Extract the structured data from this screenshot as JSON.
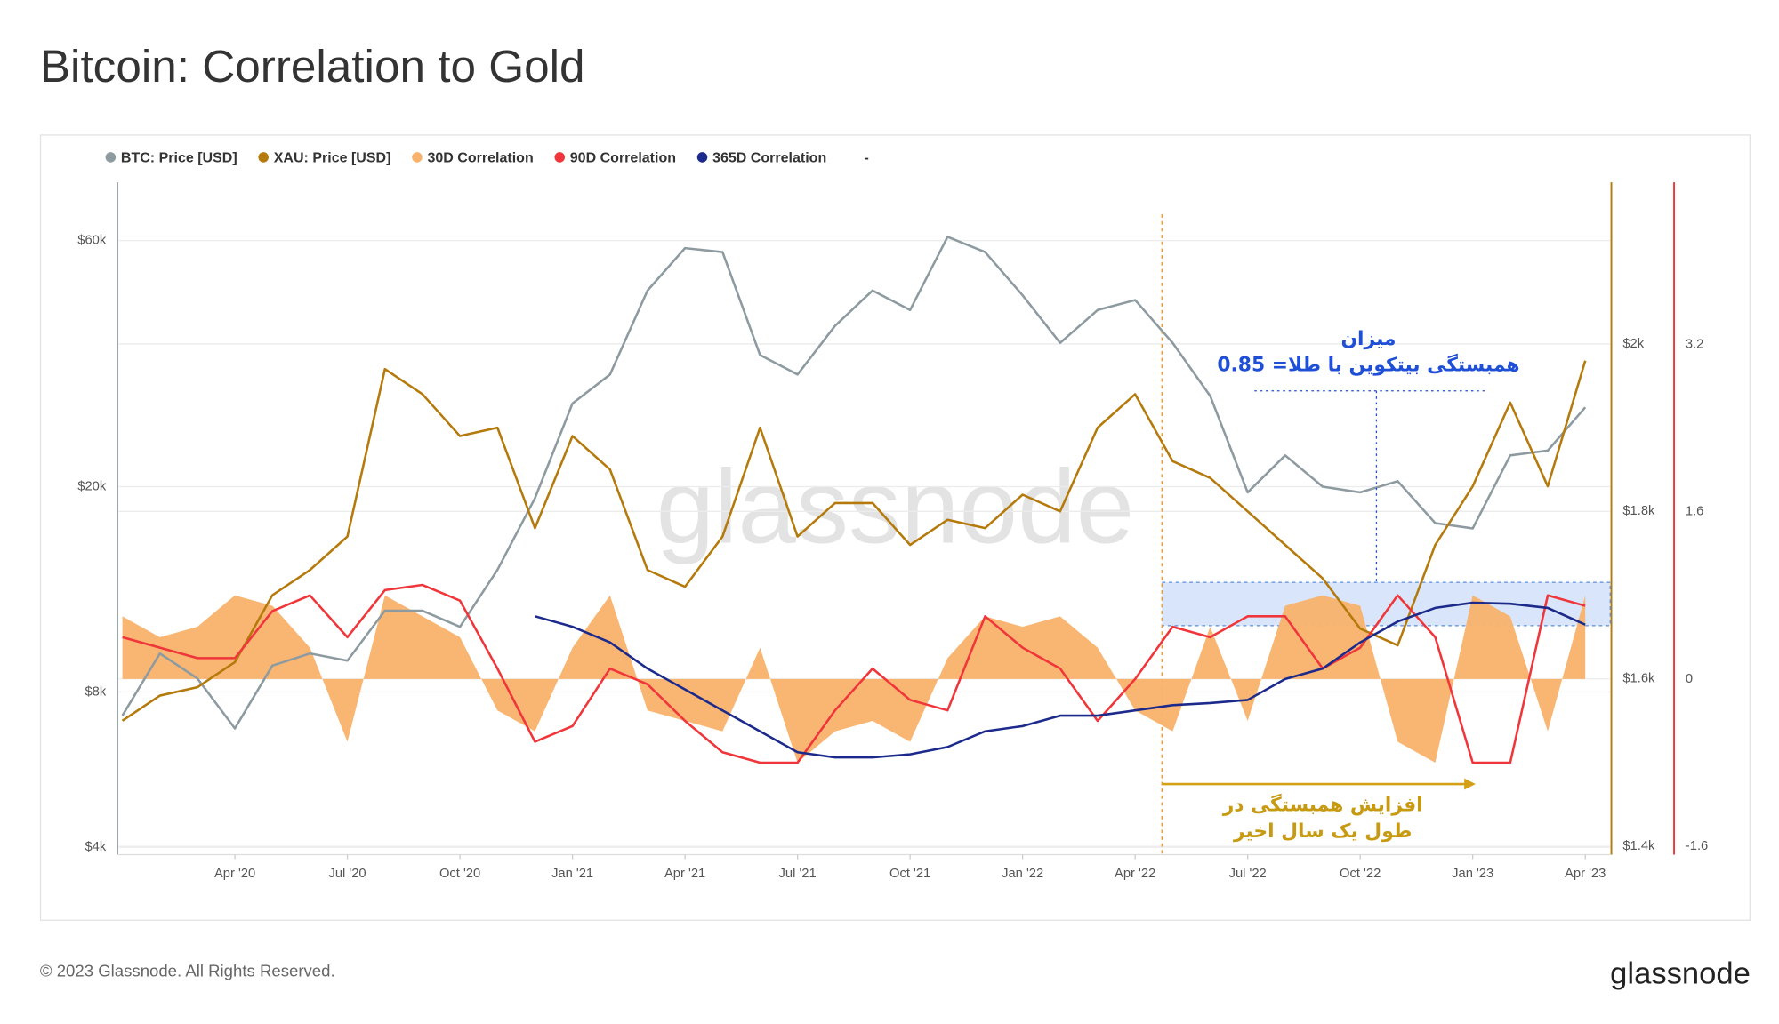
{
  "chart_data": {
    "type": "line",
    "title": "Bitcoin: Correlation to Gold",
    "footer": "© 2023 Glassnode. All Rights Reserved.",
    "logo": "glassnode",
    "watermark": "glassnode",
    "legend_note": "-",
    "annotations": [
      "میزان",
      "همبستگی بیتکوین با طلا= 0.85",
      "افزایش همبستگی در",
      "طول یک سال اخیر"
    ],
    "x": [
      "2020-01",
      "2020-02",
      "2020-03",
      "2020-04",
      "2020-05",
      "2020-06",
      "2020-07",
      "2020-08",
      "2020-09",
      "2020-10",
      "2020-11",
      "2020-12",
      "2021-01",
      "2021-02",
      "2021-03",
      "2021-04",
      "2021-05",
      "2021-06",
      "2021-07",
      "2021-08",
      "2021-09",
      "2021-10",
      "2021-11",
      "2021-12",
      "2022-01",
      "2022-02",
      "2022-03",
      "2022-04",
      "2022-05",
      "2022-06",
      "2022-07",
      "2022-08",
      "2022-09",
      "2022-10",
      "2022-11",
      "2022-12",
      "2023-01",
      "2023-02",
      "2023-03",
      "2023-04"
    ],
    "xlim": [
      "2020-01",
      "2023-05"
    ],
    "xticks": [
      {
        "value": "2020-04",
        "label": "Apr '20"
      },
      {
        "value": "2020-07",
        "label": "Jul '20"
      },
      {
        "value": "2020-10",
        "label": "Oct '20"
      },
      {
        "value": "2021-01",
        "label": "Jan '21"
      },
      {
        "value": "2021-04",
        "label": "Apr '21"
      },
      {
        "value": "2021-07",
        "label": "Jul '21"
      },
      {
        "value": "2021-10",
        "label": "Oct '21"
      },
      {
        "value": "2022-01",
        "label": "Jan '22"
      },
      {
        "value": "2022-04",
        "label": "Apr '22"
      },
      {
        "value": "2022-07",
        "label": "Jul '22"
      },
      {
        "value": "2022-10",
        "label": "Oct '22"
      },
      {
        "value": "2023-01",
        "label": "Jan '23"
      },
      {
        "value": "2023-04",
        "label": "Apr '23"
      }
    ],
    "ylog": true,
    "ylim": [
      3870,
      77800
    ],
    "yticks": [
      {
        "value": 4000,
        "label": "$4k"
      },
      {
        "value": 8000,
        "label": "$8k"
      },
      {
        "value": 20000,
        "label": "$20k"
      },
      {
        "value": 60000,
        "label": "$60k"
      }
    ],
    "y2lim": [
      1390,
      2193
    ],
    "y2ticks": [
      {
        "value": 1400,
        "label": "$1.4k"
      },
      {
        "value": 1600,
        "label": "$1.6k"
      },
      {
        "value": 1800,
        "label": "$1.8k"
      },
      {
        "value": 2000,
        "label": "$2k"
      }
    ],
    "y3lim": [
      -1.68,
      4.75
    ],
    "y3ticks": [
      -1.6,
      0,
      1.6,
      3.2
    ],
    "grid": true,
    "legend": "top-left",
    "series": [
      {
        "name": "30D Correlation",
        "color": "#f9b26b",
        "kind": "area",
        "axis": "y3",
        "values": [
          0.6,
          0.4,
          0.5,
          0.8,
          0.7,
          0.3,
          -0.6,
          0.8,
          0.6,
          0.4,
          -0.3,
          -0.5,
          0.3,
          0.8,
          -0.3,
          -0.4,
          -0.5,
          0.3,
          -0.8,
          -0.5,
          -0.4,
          -0.6,
          0.2,
          0.6,
          0.5,
          0.6,
          0.3,
          -0.3,
          -0.5,
          0.5,
          -0.4,
          0.7,
          0.8,
          0.7,
          -0.6,
          -0.8,
          0.8,
          0.6,
          -0.5,
          0.8
        ]
      },
      {
        "name": "BTC: Price [USD]",
        "color": "#8d9ba0",
        "kind": "line",
        "axis": "y",
        "values": [
          7200,
          9500,
          8500,
          6800,
          9000,
          9500,
          9200,
          11500,
          11500,
          10700,
          13800,
          19000,
          29000,
          33000,
          48000,
          58000,
          57000,
          36000,
          33000,
          41000,
          48000,
          44000,
          61000,
          57000,
          47000,
          38000,
          44000,
          46000,
          38000,
          30000,
          19500,
          23000,
          20000,
          19500,
          20500,
          17000,
          16600,
          23000,
          23500,
          28500
        ]
      },
      {
        "name": "XAU: Price [USD]",
        "color": "#b57a0c",
        "kind": "line",
        "axis": "y2",
        "values": [
          1550,
          1580,
          1590,
          1620,
          1700,
          1730,
          1770,
          1970,
          1940,
          1890,
          1900,
          1780,
          1890,
          1850,
          1730,
          1710,
          1770,
          1900,
          1770,
          1810,
          1810,
          1760,
          1790,
          1780,
          1820,
          1800,
          1900,
          1940,
          1860,
          1840,
          1800,
          1760,
          1720,
          1660,
          1640,
          1760,
          1830,
          1930,
          1830,
          1980
        ]
      },
      {
        "name": "90D Correlation",
        "color": "#f0363a",
        "kind": "line",
        "axis": "y3",
        "values": [
          0.4,
          0.3,
          0.2,
          0.2,
          0.65,
          0.8,
          0.4,
          0.85,
          0.9,
          0.75,
          0.1,
          -0.6,
          -0.45,
          0.1,
          -0.05,
          -0.4,
          -0.7,
          -0.8,
          -0.8,
          -0.3,
          0.1,
          -0.2,
          -0.3,
          0.6,
          0.3,
          0.1,
          -0.4,
          0.0,
          0.5,
          0.4,
          0.6,
          0.6,
          0.1,
          0.3,
          0.8,
          0.4,
          -0.8,
          -0.8,
          0.8,
          0.7
        ]
      },
      {
        "name": "365D Correlation",
        "color": "#1c2a8c",
        "kind": "line",
        "axis": "y3",
        "values": [
          null,
          null,
          null,
          null,
          null,
          null,
          null,
          null,
          null,
          null,
          null,
          0.6,
          0.5,
          0.35,
          0.1,
          -0.1,
          -0.3,
          -0.5,
          -0.7,
          -0.75,
          -0.75,
          -0.72,
          -0.65,
          -0.5,
          -0.45,
          -0.35,
          -0.35,
          -0.3,
          -0.25,
          -0.23,
          -0.2,
          0.0,
          0.1,
          0.35,
          0.55,
          0.68,
          0.73,
          0.72,
          0.68,
          0.52
        ]
      }
    ]
  }
}
